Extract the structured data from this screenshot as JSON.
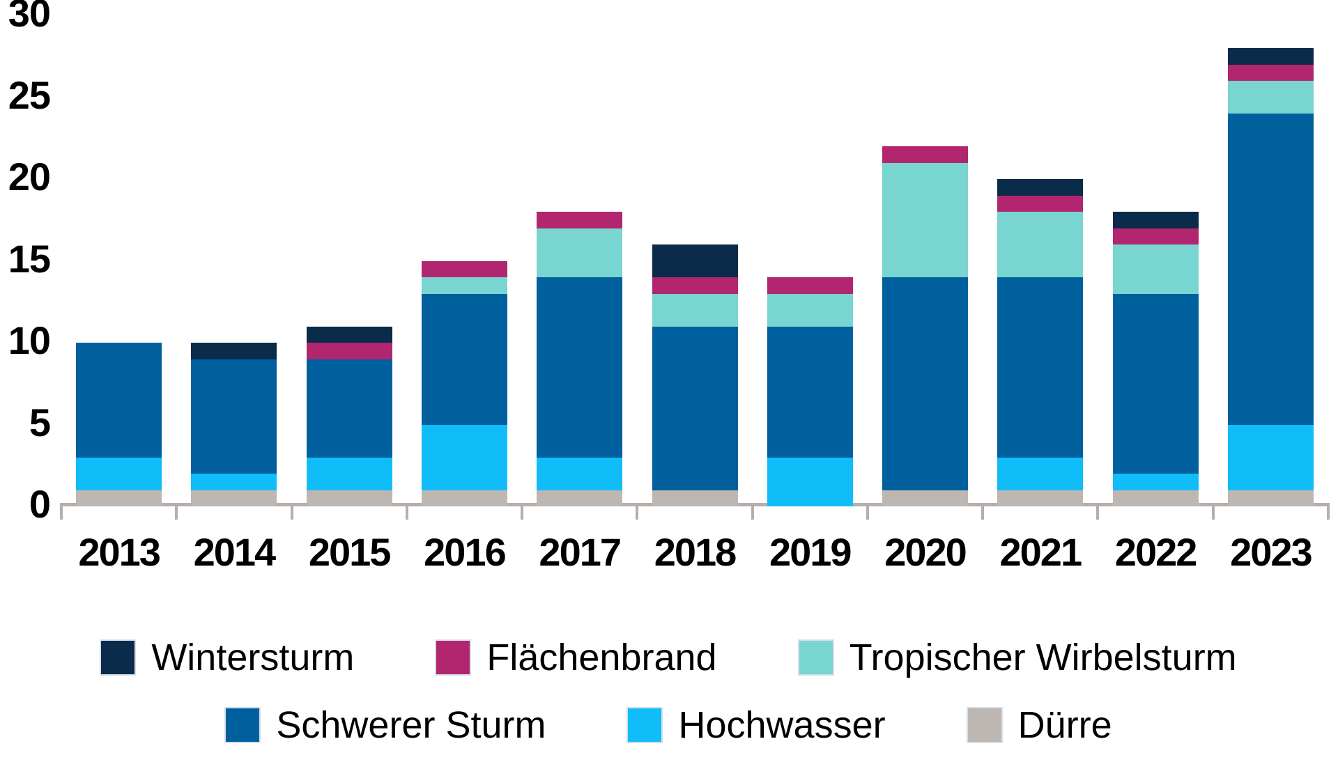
{
  "chart_data": {
    "type": "bar",
    "stacked": true,
    "title": "",
    "xlabel": "",
    "ylabel": "",
    "categories": [
      "2013",
      "2014",
      "2015",
      "2016",
      "2017",
      "2018",
      "2019",
      "2020",
      "2021",
      "2022",
      "2023"
    ],
    "series": [
      {
        "name": "Dürre",
        "color": "#bdb6b1",
        "values": [
          1,
          1,
          1,
          1,
          1,
          1,
          0,
          1,
          1,
          1,
          1
        ]
      },
      {
        "name": "Hochwasser",
        "color": "#10bdf8",
        "values": [
          2,
          1,
          2,
          4,
          2,
          0,
          3,
          0,
          2,
          1,
          4
        ]
      },
      {
        "name": "Schwerer Sturm",
        "color": "#00609e",
        "values": [
          7,
          7,
          6,
          8,
          11,
          10,
          8,
          13,
          11,
          11,
          19
        ]
      },
      {
        "name": "Tropischer Wirbelsturm",
        "color": "#79d5d1",
        "values": [
          0,
          0,
          0,
          1,
          3,
          2,
          2,
          7,
          4,
          3,
          2
        ]
      },
      {
        "name": "Flächenbrand",
        "color": "#b2256f",
        "values": [
          0,
          0,
          1,
          1,
          1,
          1,
          1,
          1,
          1,
          1,
          1
        ]
      },
      {
        "name": "Wintersturm",
        "color": "#0a2b49",
        "values": [
          0,
          1,
          1,
          0,
          0,
          2,
          0,
          0,
          1,
          1,
          1
        ]
      }
    ],
    "totals": [
      10,
      10,
      11,
      15,
      18,
      16,
      14,
      22,
      20,
      18,
      28
    ],
    "y_ticks": [
      "0",
      "5",
      "10",
      "15",
      "20",
      "25",
      "30"
    ],
    "ylim": [
      0,
      30
    ],
    "grid": false,
    "legend_position": "bottom",
    "legend_rows": [
      [
        "Wintersturm",
        "Flächenbrand",
        "Tropischer Wirbelsturm"
      ],
      [
        "Schwerer Sturm",
        "Hochwasser",
        "Dürre"
      ]
    ]
  },
  "colors": {
    "background": "#ffffff",
    "axis": "#b5aeaa",
    "text": "#000000"
  }
}
